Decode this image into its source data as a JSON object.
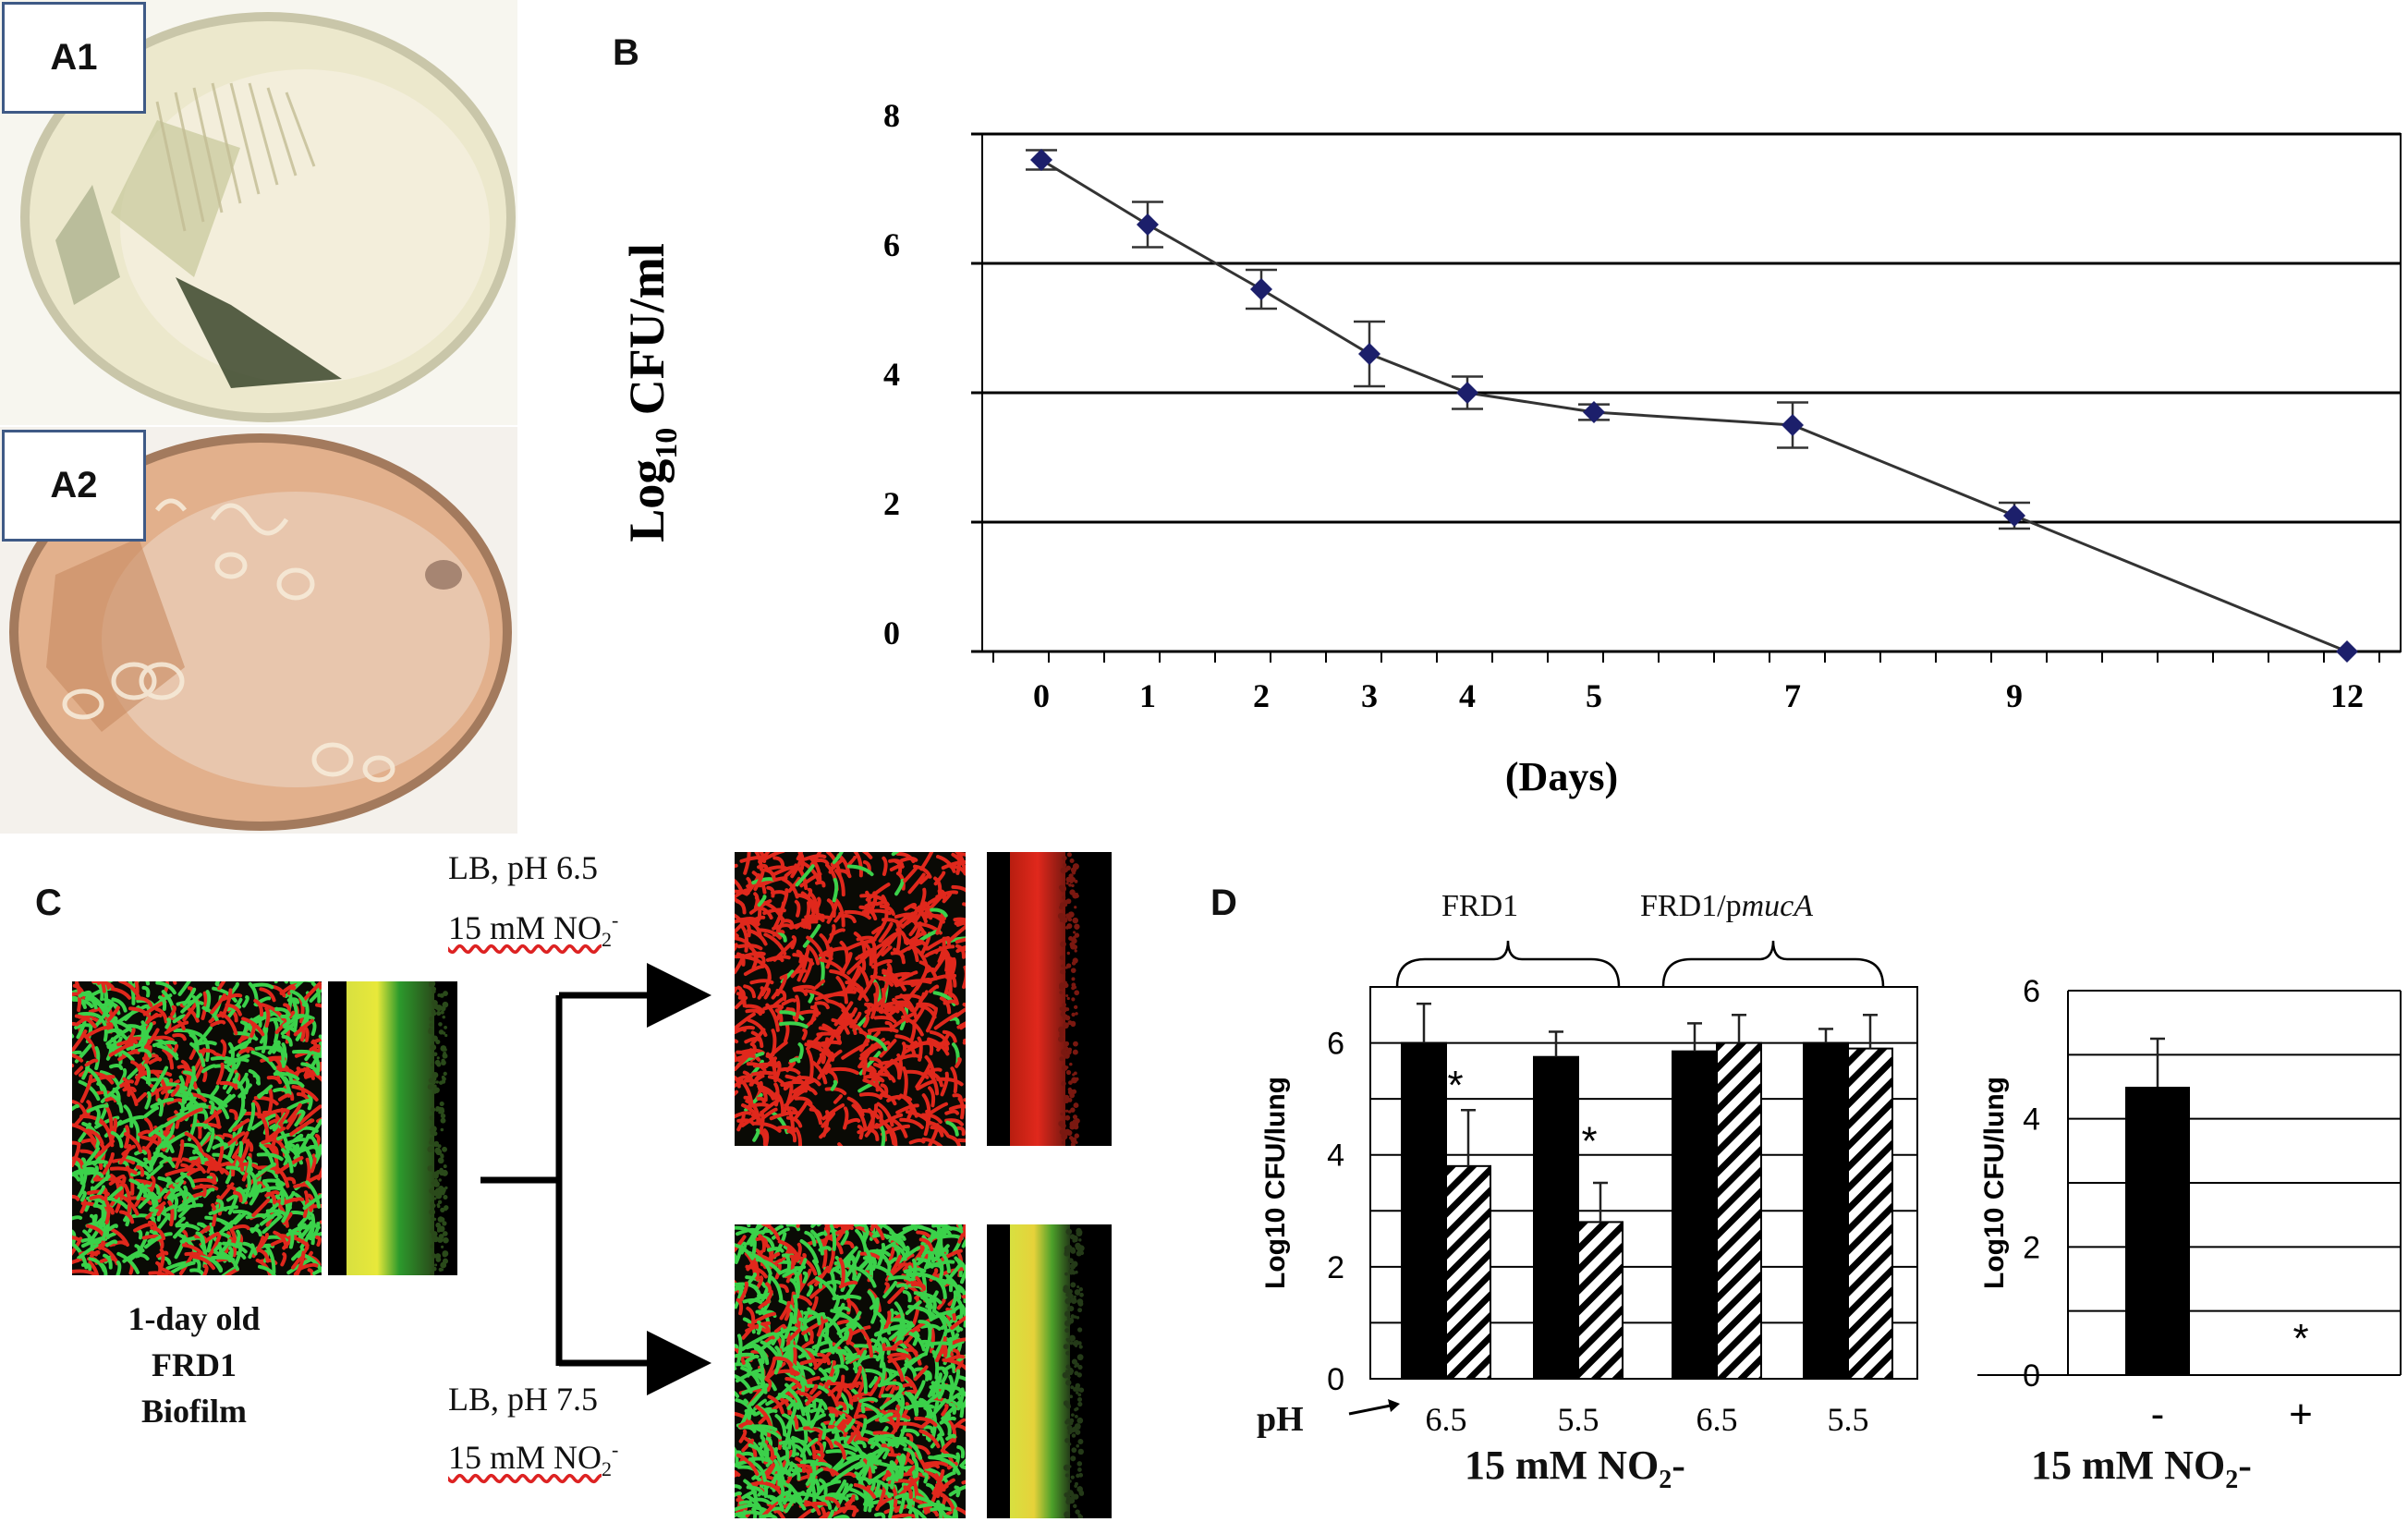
{
  "panels": {
    "a1_label": "A1",
    "a2_label": "A2",
    "b_label": "B",
    "c_label": "C",
    "d_label": "D"
  },
  "panel_c": {
    "condition_top_line1": "LB, pH 6.5",
    "condition_top_line2": "15 mM NO",
    "condition_top_sub": "2",
    "condition_top_sup": "-",
    "condition_bottom_line1": "LB, pH 7.5",
    "condition_bottom_line2": "15 mM NO",
    "condition_bottom_sub": "2",
    "condition_bottom_sup": "-",
    "caption_line1": "1-day old",
    "caption_line2": "FRD1",
    "caption_line3": "Biofilm"
  },
  "panel_d": {
    "group1_label": "FRD1",
    "group2_label_prefix": "FRD1/p",
    "group2_label_italic": "mucA",
    "ph_label": "pH",
    "left_xlabel_main": "15 mM NO",
    "left_xlabel_sub": "2",
    "left_xlabel_tail": "-",
    "right_xlabel_main": "15 mM NO",
    "right_xlabel_sub": "2",
    "right_xlabel_tail": "-",
    "star": "*"
  },
  "colors": {
    "marker": "#1c1f6b",
    "bar_black": "#000000",
    "grid": "#000000",
    "panel_border": "#3f5a86",
    "plate_a1": "#ece8cc",
    "plate_a2": "#e2b08c",
    "stain_red": "#e0281c",
    "stain_green": "#3bd14a"
  },
  "chart_data": [
    {
      "type": "line",
      "panel": "B",
      "title": "",
      "xlabel": "(Days)",
      "ylabel": "Log10 CFU/ml",
      "ylabel_main": "Log",
      "ylabel_sub": "10",
      "ylabel_tail": " CFU/ml",
      "ylim": [
        0,
        8
      ],
      "yticks": [
        "0",
        "2",
        "4",
        "6",
        "8"
      ],
      "x": [
        "0",
        "1",
        "2",
        "3",
        "4",
        "5",
        "7",
        "9",
        "12"
      ],
      "values": [
        7.6,
        6.6,
        5.6,
        4.6,
        4.0,
        3.7,
        3.5,
        2.1,
        0.0
      ],
      "errors": [
        0.15,
        0.35,
        0.3,
        0.5,
        0.25,
        0.12,
        0.35,
        0.2,
        0.0
      ],
      "grid": true
    },
    {
      "type": "bar",
      "panel": "D-left",
      "ylabel": "Log10 CFU/lung",
      "ylim": [
        0,
        7
      ],
      "yticks": [
        "0",
        "2",
        "4",
        "6"
      ],
      "categories": [
        "6.5",
        "5.5",
        "6.5",
        "5.5"
      ],
      "series": [
        {
          "values": [
            6.0,
            5.75,
            5.85,
            6.0
          ],
          "errors": [
            0.7,
            0.45,
            0.5,
            0.25
          ],
          "pattern": "solid"
        },
        {
          "values": [
            3.8,
            2.8,
            6.0,
            5.9
          ],
          "errors": [
            1.0,
            0.7,
            0.5,
            0.6
          ],
          "pattern": "hatched"
        }
      ],
      "annotations": [
        "*",
        "*"
      ],
      "grid": true
    },
    {
      "type": "bar",
      "panel": "D-right",
      "ylabel": "Log10 CFU/lung",
      "ylim": [
        0,
        6
      ],
      "yticks": [
        "0",
        "2",
        "4",
        "6"
      ],
      "categories": [
        "-",
        "+"
      ],
      "values": [
        4.5,
        0.0
      ],
      "errors": [
        0.75,
        0.0
      ],
      "annotations": [
        "",
        "*"
      ],
      "grid": true
    }
  ]
}
